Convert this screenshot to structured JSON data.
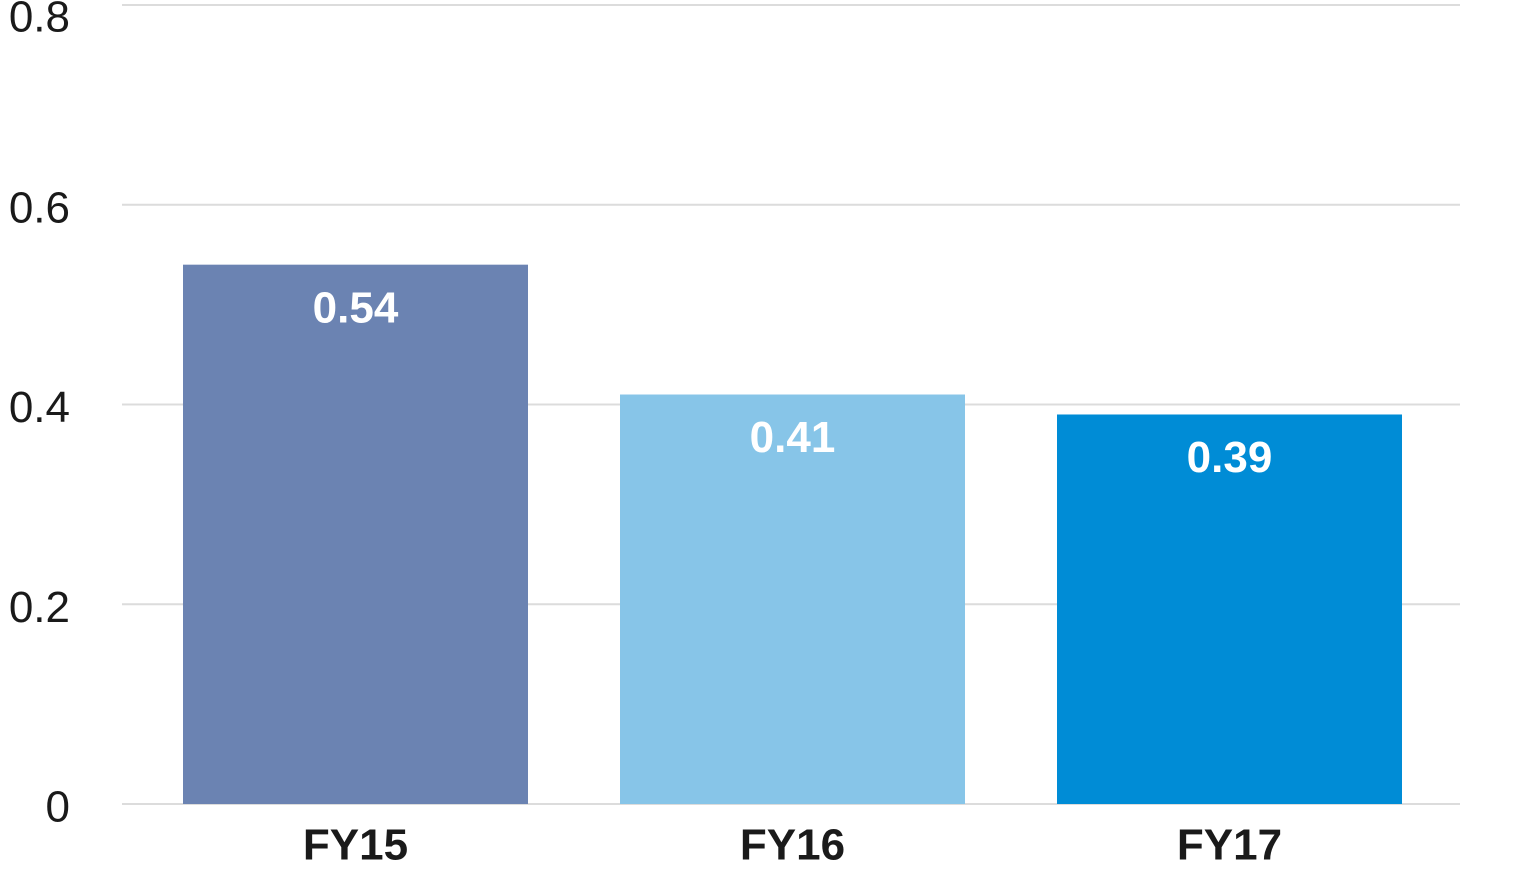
{
  "chart_data": {
    "type": "bar",
    "categories": [
      "FY15",
      "FY16",
      "FY17"
    ],
    "values": [
      0.54,
      0.41,
      0.39
    ],
    "colors": [
      "#6b83b2",
      "#87c5e8",
      "#008cd6"
    ],
    "ylim": [
      0,
      0.8
    ],
    "yticks": [
      0,
      0.2,
      0.4,
      0.6,
      0.8
    ],
    "grid": true
  }
}
